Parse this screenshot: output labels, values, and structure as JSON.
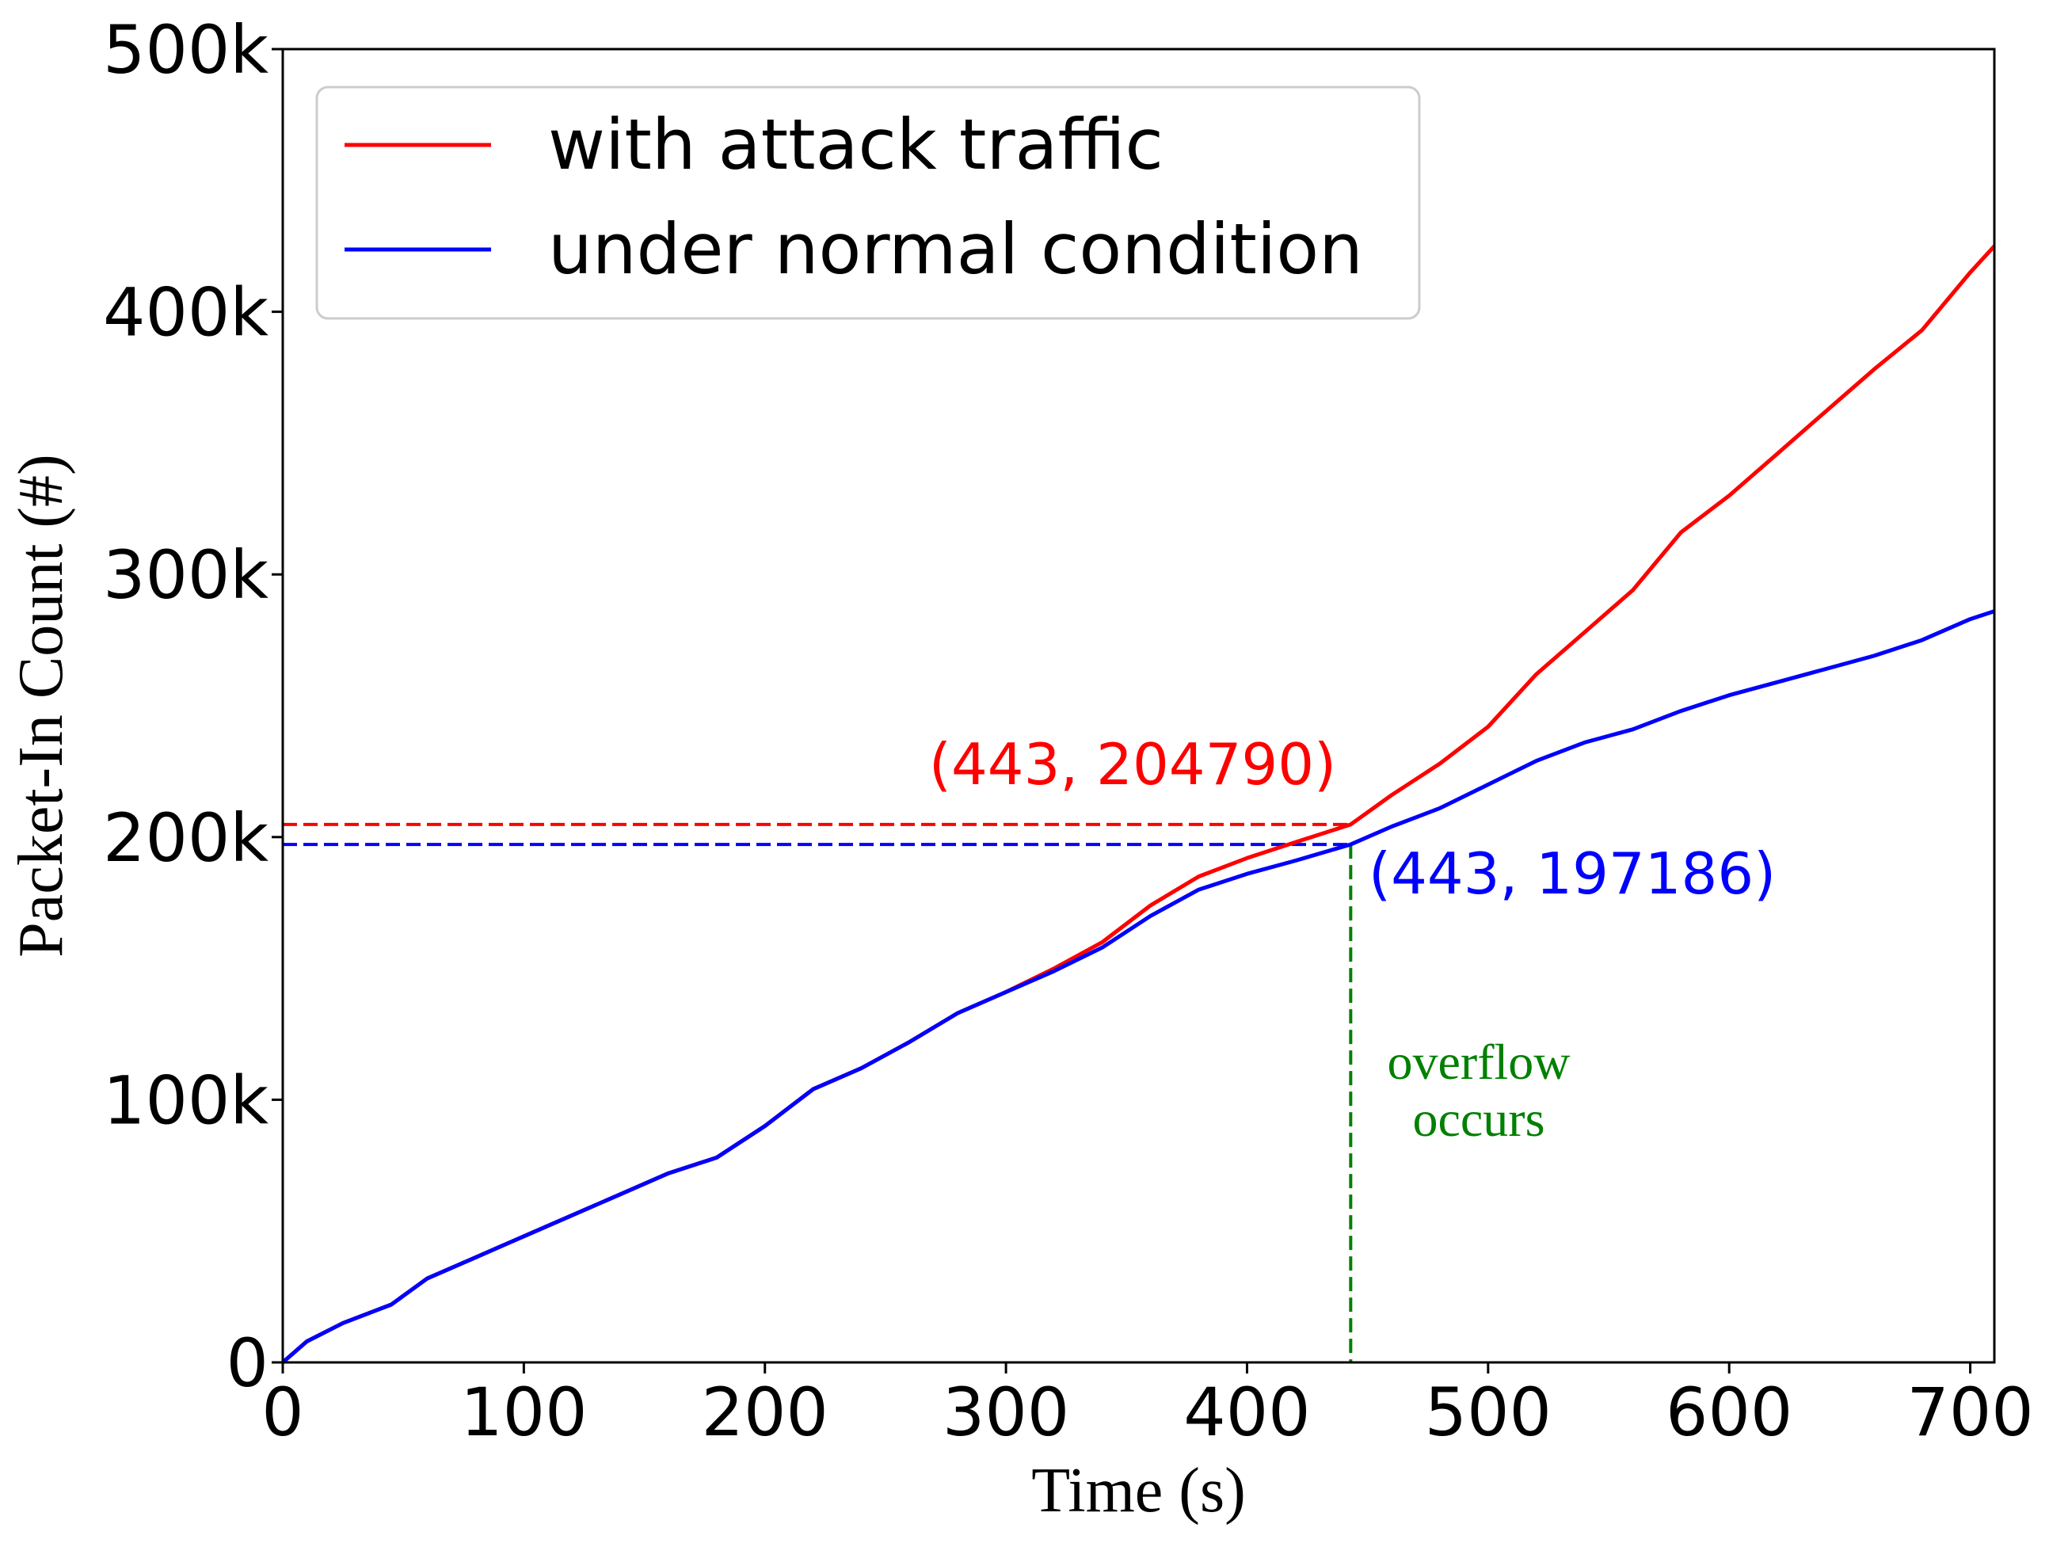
{
  "chart_data": {
    "type": "line",
    "xlabel": "Time (s)",
    "ylabel": "Packet-In Count (#)",
    "xlim": [
      0,
      710
    ],
    "ylim": [
      0,
      500000
    ],
    "x_ticks": [
      0,
      100,
      200,
      300,
      400,
      500,
      600,
      700
    ],
    "y_ticks": [
      0,
      100000,
      200000,
      300000,
      400000,
      500000
    ],
    "x_tick_labels": [
      "0",
      "100",
      "200",
      "300",
      "400",
      "500",
      "600",
      "700"
    ],
    "y_tick_labels": [
      "0",
      "100k",
      "200k",
      "300k",
      "400k",
      "500k"
    ],
    "legend_placement": "top-left",
    "series": [
      {
        "name": "with attack traffic",
        "color": "#ff0000",
        "x": [
          0,
          10,
          25,
          45,
          60,
          80,
          100,
          120,
          140,
          160,
          180,
          200,
          220,
          240,
          260,
          280,
          300,
          320,
          340,
          360,
          380,
          400,
          420,
          443,
          460,
          480,
          500,
          520,
          540,
          560,
          580,
          600,
          620,
          640,
          660,
          680,
          700,
          710
        ],
        "y": [
          0,
          8000,
          15000,
          22000,
          32000,
          40000,
          48000,
          56000,
          64000,
          72000,
          78000,
          90000,
          104000,
          112000,
          122000,
          133000,
          141000,
          150000,
          160000,
          174000,
          185000,
          192000,
          198000,
          204790,
          216000,
          228000,
          242000,
          262000,
          278000,
          294000,
          316000,
          330000,
          346000,
          362000,
          378000,
          393000,
          415000,
          425000
        ]
      },
      {
        "name": "under normal condition",
        "color": "#0000ff",
        "x": [
          0,
          10,
          25,
          45,
          60,
          80,
          100,
          120,
          140,
          160,
          180,
          200,
          220,
          240,
          260,
          280,
          300,
          320,
          340,
          360,
          380,
          400,
          420,
          443,
          460,
          480,
          500,
          520,
          540,
          560,
          580,
          600,
          620,
          640,
          660,
          680,
          700,
          710
        ],
        "y": [
          0,
          8000,
          15000,
          22000,
          32000,
          40000,
          48000,
          56000,
          64000,
          72000,
          78000,
          90000,
          104000,
          112000,
          122000,
          133000,
          141000,
          149000,
          158000,
          170000,
          180000,
          186000,
          191000,
          197186,
          204000,
          211000,
          220000,
          229000,
          236000,
          241000,
          248000,
          254000,
          259000,
          264000,
          269000,
          275000,
          283000,
          286000
        ]
      }
    ],
    "annotations": [
      {
        "text": "(443, 204790)",
        "color": "#ff0000",
        "x": 443,
        "y": 204790
      },
      {
        "text": "(443, 197186)",
        "color": "#0000ff",
        "x": 443,
        "y": 197186
      },
      {
        "text_lines": [
          "overflow",
          "occurs"
        ],
        "color": "#008000",
        "x": 443
      }
    ]
  }
}
